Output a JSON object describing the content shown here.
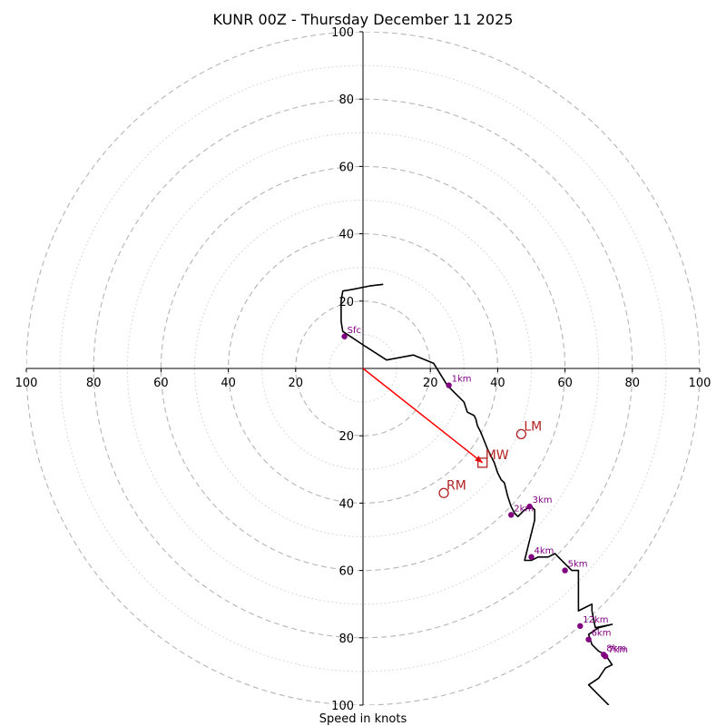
{
  "chart_data": {
    "type": "hodograph",
    "title": "KUNR 00Z - Thursday December 11 2025",
    "xlabel": "Speed in knots",
    "units": "knots",
    "range": [
      -100,
      100
    ],
    "ring_major": [
      20,
      40,
      60,
      80,
      100
    ],
    "ring_minor": [
      10,
      30,
      50,
      70,
      90
    ],
    "grid": true,
    "x_ticks": [
      "100",
      "80",
      "60",
      "40",
      "20",
      "20",
      "40",
      "60",
      "80",
      "100"
    ],
    "x_tick_values": [
      -100,
      -80,
      -60,
      -40,
      -20,
      20,
      40,
      60,
      80,
      100
    ],
    "y_ticks": [
      "100",
      "80",
      "60",
      "40",
      "20",
      "20",
      "40",
      "60",
      "80",
      "100"
    ],
    "y_tick_values": [
      100,
      80,
      60,
      40,
      20,
      -20,
      -40,
      -60,
      -80,
      -100
    ],
    "trace": [
      [
        6,
        25
      ],
      [
        2,
        24.5
      ],
      [
        -3,
        23.5
      ],
      [
        -6,
        23
      ],
      [
        -6.5,
        20
      ],
      [
        -6.5,
        14
      ],
      [
        -6,
        11
      ],
      [
        0,
        7
      ],
      [
        7,
        2.5
      ],
      [
        15,
        4
      ],
      [
        21,
        1.5
      ],
      [
        25,
        -5
      ],
      [
        28,
        -8
      ],
      [
        30,
        -10
      ],
      [
        31,
        -13
      ],
      [
        33,
        -14
      ],
      [
        33.5,
        -15
      ],
      [
        34,
        -17
      ],
      [
        35,
        -19
      ],
      [
        37,
        -24
      ],
      [
        39,
        -28
      ],
      [
        40,
        -31
      ],
      [
        41,
        -33
      ],
      [
        42,
        -34
      ],
      [
        43,
        -38
      ],
      [
        44,
        -41
      ],
      [
        45,
        -43
      ],
      [
        46,
        -44
      ],
      [
        48,
        -42
      ],
      [
        50,
        -41
      ],
      [
        51,
        -42
      ],
      [
        51,
        -45
      ],
      [
        50,
        -49
      ],
      [
        49,
        -53
      ],
      [
        48,
        -57
      ],
      [
        50,
        -57
      ],
      [
        52,
        -56
      ],
      [
        55,
        -56
      ],
      [
        57,
        -55
      ],
      [
        60,
        -58
      ],
      [
        62,
        -60
      ],
      [
        64,
        -60
      ],
      [
        64,
        -66
      ],
      [
        64,
        -72
      ],
      [
        66,
        -71
      ],
      [
        68,
        -70
      ],
      [
        68,
        -72
      ],
      [
        69,
        -77
      ],
      [
        74,
        -76
      ],
      [
        70,
        -77
      ],
      [
        67,
        -79
      ],
      [
        68,
        -82
      ],
      [
        69,
        -83
      ],
      [
        70,
        -84
      ],
      [
        72,
        -85
      ],
      [
        74,
        -88
      ],
      [
        72,
        -89
      ],
      [
        70,
        -92
      ],
      [
        67,
        -94
      ],
      [
        70,
        -97
      ],
      [
        73,
        -100
      ]
    ],
    "trace_color": "#000000",
    "points": [
      {
        "label": "Sfc",
        "u": -5.5,
        "v": 9.5
      },
      {
        "label": "1km",
        "u": 25.5,
        "v": -5
      },
      {
        "label": "2km",
        "u": 44,
        "v": -43.5
      },
      {
        "label": "3km",
        "u": 49.5,
        "v": -41
      },
      {
        "label": "4km",
        "u": 50,
        "v": -56
      },
      {
        "label": "5km",
        "u": 60,
        "v": -60
      },
      {
        "label": "6km",
        "u": 67,
        "v": -80.5
      },
      {
        "label": "7km",
        "u": 72,
        "v": -85.5
      },
      {
        "label": "8km",
        "u": 71.5,
        "v": -85
      },
      {
        "label": "12km",
        "u": 64.5,
        "v": -76.5
      }
    ],
    "point_color": "#800080",
    "storm_motions": [
      {
        "label": "LM",
        "u": 47,
        "v": -19.5,
        "marker": "circle"
      },
      {
        "label": "MW",
        "u": 35.5,
        "v": -28,
        "marker": "square"
      },
      {
        "label": "RM",
        "u": 24,
        "v": -37,
        "marker": "circle"
      }
    ],
    "storm_color": "#b22222",
    "motion_vector": {
      "from_u": 0,
      "from_v": 0,
      "to_u": 35.5,
      "to_v": -28,
      "color": "#ff0000"
    }
  }
}
